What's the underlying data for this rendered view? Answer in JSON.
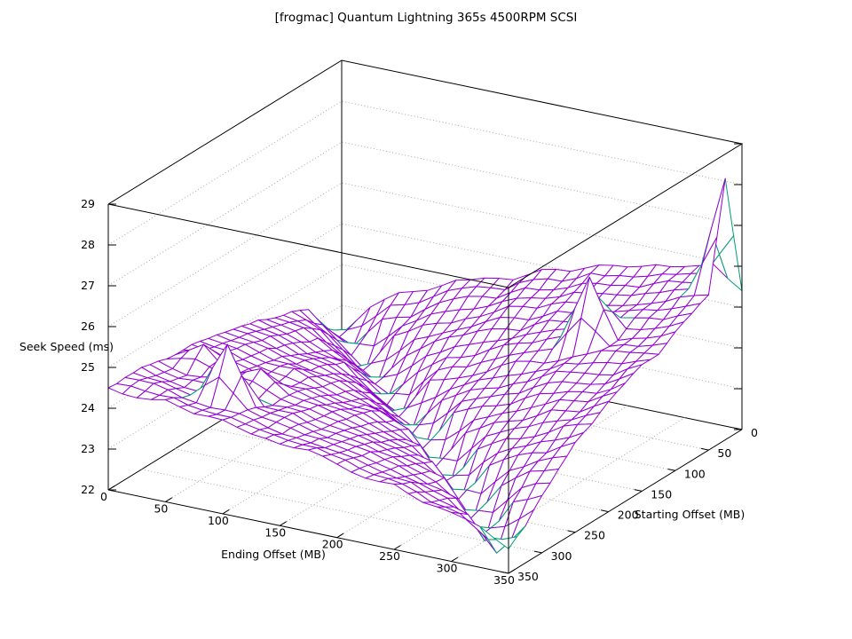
{
  "title": "[frogmac] Quantum Lightning 365s 4500RPM SCSI",
  "colors": {
    "surface_top": "#9400d3",
    "surface_bottom": "#009e73",
    "border": "#000000",
    "grid": "#a6a6a6",
    "text": "#000000",
    "background": "#ffffff"
  },
  "chart_data": {
    "type": "surface3d-wireframe",
    "title": "[frogmac] Quantum Lightning 365s 4500RPM SCSI",
    "xlabel": "Ending Offset (MB)",
    "ylabel": "Starting Offset (MB)",
    "zlabel": "Seek Speed (ms)",
    "xlim": [
      0,
      350
    ],
    "ylim": [
      0,
      350
    ],
    "zlim": [
      22,
      29
    ],
    "x_ticks": [
      0,
      50,
      100,
      150,
      200,
      250,
      300,
      350
    ],
    "y_ticks": [
      0,
      50,
      100,
      150,
      200,
      250,
      300,
      350
    ],
    "z_ticks": [
      22,
      23,
      24,
      25,
      26,
      27,
      28,
      29
    ],
    "grid": true,
    "hidden3d": true,
    "legend": "none",
    "x": [
      0,
      25,
      50,
      75,
      100,
      125,
      150,
      175,
      200,
      225,
      250,
      275,
      300,
      325,
      350
    ],
    "y": [
      0,
      25,
      50,
      75,
      100,
      125,
      150,
      175,
      200,
      225,
      250,
      275,
      300,
      325,
      350
    ],
    "z_units": "ms",
    "z_grid_note": "rows = Starting Offset (y) from 0 to 350, cols = Ending Offset (x) from 0 to 350; values estimated from plot",
    "z_grid": [
      [
        22.3,
        23.1,
        23.6,
        23.8,
        24.2,
        24.4,
        24.5,
        24.9,
        25.0,
        25.3,
        25.4,
        25.6,
        25.7,
        25.9,
        25.4
      ],
      [
        22.7,
        22.4,
        23.2,
        23.4,
        23.9,
        24.2,
        24.3,
        24.7,
        24.8,
        25.1,
        25.2,
        25.3,
        25.6,
        25.7,
        28.4
      ],
      [
        23.4,
        22.8,
        22.2,
        23.2,
        23.6,
        23.8,
        24.1,
        24.5,
        24.6,
        24.9,
        25.0,
        25.1,
        25.3,
        25.6,
        25.8
      ],
      [
        23.6,
        23.3,
        22.7,
        22.3,
        23.1,
        23.6,
        23.9,
        24.2,
        24.3,
        24.7,
        24.8,
        25.1,
        25.2,
        25.3,
        25.6
      ],
      [
        23.7,
        23.6,
        23.2,
        22.8,
        22.4,
        23.1,
        23.6,
        23.8,
        24.2,
        24.4,
        24.7,
        26.3,
        24.9,
        25.1,
        25.4
      ],
      [
        23.9,
        23.7,
        23.4,
        23.3,
        22.7,
        22.3,
        23.3,
        23.5,
        23.8,
        24.2,
        24.3,
        24.6,
        24.9,
        25.0,
        25.1
      ],
      [
        24.0,
        23.9,
        23.6,
        23.5,
        23.2,
        22.8,
        22.4,
        23.2,
        23.6,
        23.8,
        24.1,
        24.5,
        24.6,
        24.7,
        25.1
      ],
      [
        24.1,
        24.0,
        23.8,
        23.6,
        23.5,
        23.2,
        22.8,
        22.3,
        23.3,
        23.6,
        23.8,
        24.2,
        24.4,
        24.5,
        24.9
      ],
      [
        24.2,
        24.1,
        23.9,
        23.9,
        23.6,
        23.4,
        23.3,
        23.0,
        22.2,
        23.2,
        23.6,
        23.8,
        24.2,
        24.3,
        24.7
      ],
      [
        24.3,
        24.2,
        24.0,
        23.8,
        23.8,
        23.6,
        23.5,
        23.2,
        23.0,
        22.1,
        23.2,
        23.6,
        23.8,
        24.2,
        24.4
      ],
      [
        24.3,
        24.7,
        24.1,
        24.4,
        23.9,
        23.8,
        23.6,
        23.4,
        23.2,
        23.0,
        22.2,
        23.2,
        23.6,
        23.8,
        24.2
      ],
      [
        24.4,
        24.2,
        24.3,
        24.1,
        23.9,
        23.9,
        23.7,
        23.6,
        23.4,
        23.2,
        23.0,
        22.1,
        23.1,
        23.6,
        23.8
      ],
      [
        24.5,
        24.3,
        24.2,
        25.5,
        24.1,
        24.0,
        23.8,
        23.7,
        23.6,
        23.4,
        23.1,
        22.9,
        22.0,
        23.1,
        23.4
      ],
      [
        24.5,
        24.5,
        24.3,
        24.2,
        24.2,
        24.0,
        23.9,
        23.8,
        23.7,
        23.5,
        23.4,
        23.1,
        22.9,
        22.1,
        22.9
      ],
      [
        24.5,
        24.4,
        24.5,
        24.3,
        24.3,
        24.1,
        24.0,
        24.0,
        23.8,
        23.6,
        23.6,
        23.3,
        23.2,
        23.0,
        22.6
      ]
    ]
  }
}
